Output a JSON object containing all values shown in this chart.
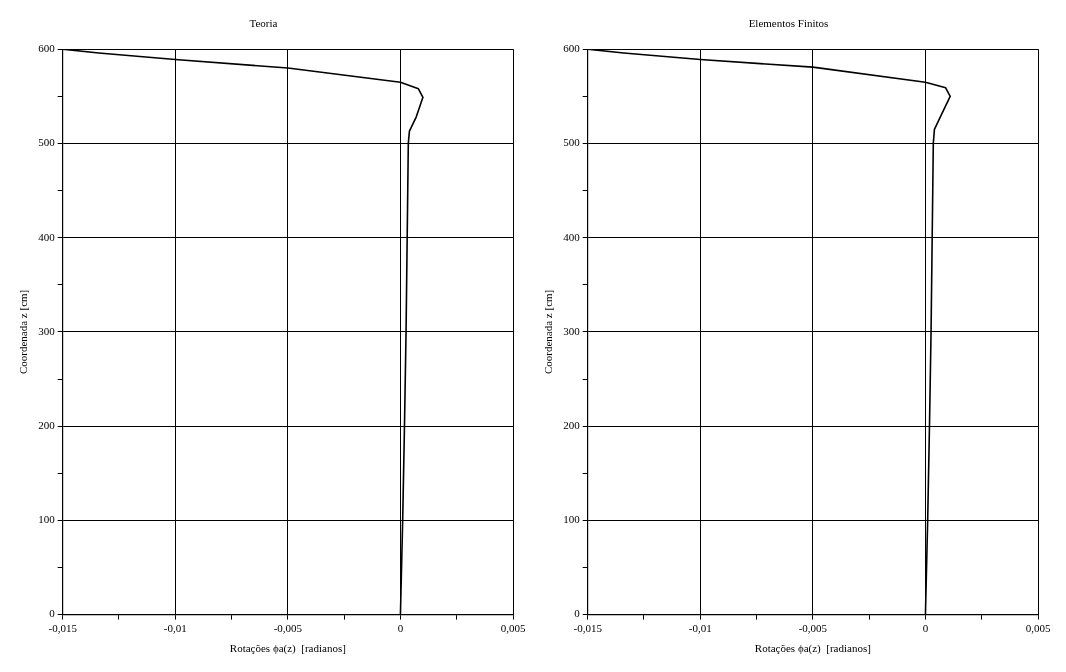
{
  "chart_data": [
    {
      "type": "line",
      "title": "Teoria",
      "xlabel": "Rotações ϕa(z)  [radianos]",
      "ylabel": "Coordenada z [cm]",
      "grid": true,
      "legend": false,
      "marker": "none",
      "line_style": "solid",
      "xlim": [
        -0.015,
        0.005
      ],
      "ylim": [
        0,
        600
      ],
      "xticks": [
        {
          "value": -0.015,
          "label": "-0,015"
        },
        {
          "value": -0.0125,
          "label": null
        },
        {
          "value": -0.01,
          "label": "-0,01"
        },
        {
          "value": -0.0075,
          "label": null
        },
        {
          "value": -0.005,
          "label": "-0,005"
        },
        {
          "value": -0.0025,
          "label": null
        },
        {
          "value": 0,
          "label": "0"
        },
        {
          "value": 0.0025,
          "label": null
        },
        {
          "value": 0.005,
          "label": "0,005"
        }
      ],
      "yticks": [
        0,
        {
          "value": 50,
          "label": null
        },
        100,
        {
          "value": 150,
          "label": null
        },
        200,
        {
          "value": 250,
          "label": null
        },
        300,
        {
          "value": 350,
          "label": null
        },
        400,
        {
          "value": 450,
          "label": null
        },
        500,
        {
          "value": 550,
          "label": null
        },
        600
      ],
      "series": [
        {
          "color": "#000000",
          "x": [
            0,
            0.0001,
            0.00018,
            0.00025,
            0.0003,
            0.00035,
            0.0004,
            0.0007,
            0.001,
            0.0008,
            0,
            -0.005,
            -0.01,
            -0.0134,
            -0.015
          ],
          "values": [
            0,
            100,
            200,
            300,
            400,
            500,
            513,
            528,
            549,
            558,
            565,
            580,
            589,
            596,
            600
          ]
        }
      ]
    },
    {
      "type": "line",
      "title": "Elementos Finitos",
      "xlabel": "Rotações ϕa(z)  [radianos]",
      "ylabel": "Coordenada z [cm]",
      "grid": true,
      "legend": false,
      "marker": "none",
      "line_style": "solid",
      "xlim": [
        -0.015,
        0.005
      ],
      "ylim": [
        0,
        600
      ],
      "xticks": [
        {
          "value": -0.015,
          "label": "-0,015"
        },
        {
          "value": -0.0125,
          "label": null
        },
        {
          "value": -0.01,
          "label": "-0,01"
        },
        {
          "value": -0.0075,
          "label": null
        },
        {
          "value": -0.005,
          "label": "-0,005"
        },
        {
          "value": -0.0025,
          "label": null
        },
        {
          "value": 0,
          "label": "0"
        },
        {
          "value": 0.0025,
          "label": null
        },
        {
          "value": 0.005,
          "label": "0,005"
        }
      ],
      "yticks": [
        0,
        {
          "value": 50,
          "label": null
        },
        100,
        {
          "value": 150,
          "label": null
        },
        200,
        {
          "value": 250,
          "label": null
        },
        300,
        {
          "value": 350,
          "label": null
        },
        400,
        {
          "value": 450,
          "label": null
        },
        500,
        {
          "value": 550,
          "label": null
        },
        600
      ],
      "series": [
        {
          "color": "#000000",
          "x": [
            0,
            0.0001,
            0.00018,
            0.00025,
            0.0003,
            0.00035,
            0.0004,
            0.0007,
            0.0011,
            0.0009,
            0,
            -0.005,
            -0.01,
            -0.0134,
            -0.015
          ],
          "values": [
            0,
            100,
            200,
            300,
            400,
            500,
            515,
            530,
            550,
            559,
            565,
            581,
            589,
            596,
            600
          ]
        }
      ]
    }
  ]
}
